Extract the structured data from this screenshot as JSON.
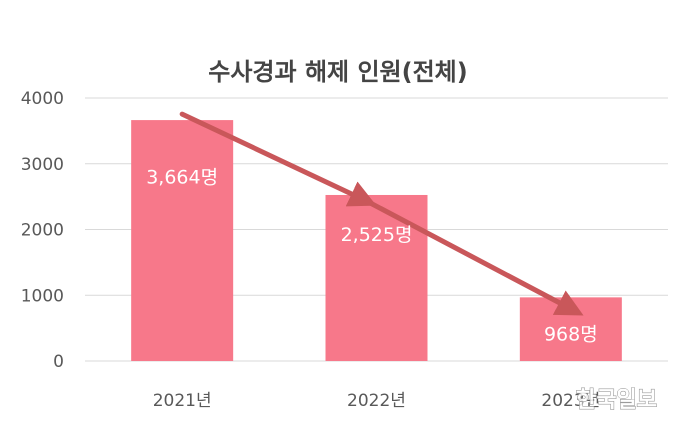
{
  "chart_data": {
    "type": "bar",
    "title": "수사경과 해제 인원(전체)",
    "categories": [
      "2021년",
      "2022년",
      "2023년"
    ],
    "values": [
      3664,
      2525,
      968
    ],
    "data_labels": [
      "3,664명",
      "2,525명",
      "968명"
    ],
    "ylim": [
      0,
      4000
    ],
    "yticks": [
      0,
      1000,
      2000,
      3000,
      4000
    ],
    "ytick_labels": [
      "0",
      "1000",
      "2000",
      "3000",
      "4000"
    ],
    "xlabel": "",
    "ylabel": "",
    "grid": true,
    "legend": "none",
    "trend_arrow": true,
    "colors": {
      "bar": "#f7788a",
      "arrow": "#c9575a",
      "grid": "#d9d9d9",
      "text": "#595959",
      "title": "#444444"
    }
  },
  "watermark": "한국일보"
}
